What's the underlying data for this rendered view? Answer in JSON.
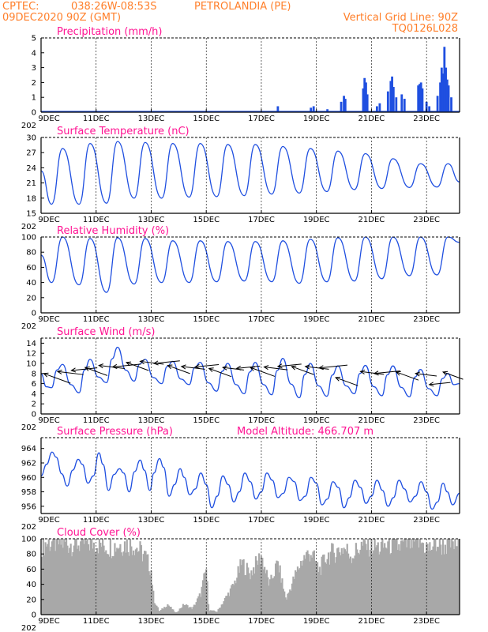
{
  "header": {
    "source": "CPTEC:",
    "coords": "038:26W-08:53S",
    "location": "PETROLANDIA (PE)",
    "date": "09DEC2020 90Z (GMT)",
    "grid_line": "Vertical Grid Line: 90Z",
    "code": "TQ0126L028"
  },
  "colors": {
    "line": "#1f4fe0",
    "cloud": "#a8a8a8",
    "header": "#ff7f2a",
    "title": "#ff1493",
    "grid": "#000000"
  },
  "x_ticks": [
    "9DEC",
    "11DEC",
    "13DEC",
    "15DEC",
    "17DEC",
    "19DEC",
    "21DEC",
    "23DEC"
  ],
  "year_stub": "202",
  "chart_data": [
    {
      "id": "precip",
      "type": "bar",
      "title": "Precipitation (mm/h)",
      "yticks": [
        "0",
        "1",
        "2",
        "3",
        "4",
        "5"
      ],
      "ylim": [
        0,
        5
      ],
      "x_days": [
        9,
        24.2
      ],
      "bars": [
        [
          17.6,
          0.4
        ],
        [
          18.8,
          0.3
        ],
        [
          18.9,
          0.4
        ],
        [
          19.4,
          0.2
        ],
        [
          19.9,
          0.7
        ],
        [
          20.0,
          1.1
        ],
        [
          20.05,
          0.9
        ],
        [
          20.7,
          1.6
        ],
        [
          20.75,
          2.3
        ],
        [
          20.8,
          2.0
        ],
        [
          20.85,
          1.2
        ],
        [
          21.2,
          0.4
        ],
        [
          21.3,
          0.6
        ],
        [
          21.6,
          1.4
        ],
        [
          21.7,
          2.1
        ],
        [
          21.75,
          2.4
        ],
        [
          21.8,
          1.7
        ],
        [
          21.9,
          1.0
        ],
        [
          22.1,
          1.2
        ],
        [
          22.2,
          0.9
        ],
        [
          22.7,
          1.8
        ],
        [
          22.75,
          1.9
        ],
        [
          22.8,
          2.0
        ],
        [
          22.85,
          1.6
        ],
        [
          23.0,
          0.7
        ],
        [
          23.1,
          0.4
        ],
        [
          23.4,
          1.1
        ],
        [
          23.5,
          2.0
        ],
        [
          23.55,
          3.0
        ],
        [
          23.6,
          2.6
        ],
        [
          23.65,
          4.4
        ],
        [
          23.7,
          3.0
        ],
        [
          23.75,
          2.2
        ],
        [
          23.8,
          1.8
        ],
        [
          23.9,
          1.0
        ]
      ]
    },
    {
      "id": "temp",
      "type": "line",
      "title": "Surface Temperature (nC)",
      "yticks": [
        "15",
        "18",
        "21",
        "24",
        "27",
        "30"
      ],
      "ylim": [
        15,
        30
      ],
      "min": [
        16.8,
        16.8,
        17.0,
        18.0,
        18.0,
        18.2,
        18.3,
        18.5,
        18.8,
        19.0,
        19.3,
        19.7,
        19.9,
        20.1,
        20.2
      ],
      "max": [
        27.8,
        28.8,
        29.2,
        29.0,
        28.8,
        28.8,
        28.6,
        28.6,
        28.2,
        27.8,
        27.3,
        26.8,
        25.8,
        24.8,
        24.8
      ],
      "end": 21.2
    },
    {
      "id": "rh",
      "type": "line",
      "title": "Relative Humidity (%)",
      "yticks": [
        "0",
        "20",
        "40",
        "60",
        "80",
        "100"
      ],
      "ylim": [
        0,
        100
      ],
      "min": [
        40,
        37,
        27,
        38,
        40,
        40,
        41,
        42,
        41,
        39,
        41,
        42,
        45,
        49,
        50
      ],
      "max": [
        100,
        98,
        99,
        98,
        95,
        95,
        94,
        94,
        95,
        97,
        99,
        100,
        100,
        100,
        100
      ],
      "end": 93
    },
    {
      "id": "wind",
      "type": "line",
      "title": "Surface Wind (m/s)",
      "yticks": [
        "0",
        "2",
        "4",
        "6",
        "8",
        "10",
        "12",
        "14"
      ],
      "ylim": [
        0,
        15
      ],
      "min": [
        5.2,
        4.2,
        6.2,
        6.5,
        6.0,
        5.8,
        4.5,
        4.0,
        3.8,
        3.2,
        3.5,
        4.0,
        3.6,
        3.4,
        3.6
      ],
      "max": [
        9.8,
        10.8,
        13.2,
        10.8,
        10.4,
        10.2,
        10.0,
        10.2,
        11.0,
        10.0,
        9.5,
        9.6,
        9.5,
        8.8,
        8.0
      ],
      "end": 6.0,
      "arrows": [
        [
          9.1,
          8.0,
          1.2
        ],
        [
          9.6,
          8.4,
          1.1
        ],
        [
          10.1,
          8.6,
          1.1
        ],
        [
          10.6,
          9.2,
          1.0
        ],
        [
          11.1,
          9.6,
          1.1
        ],
        [
          11.6,
          9.3,
          1.2
        ],
        [
          12.1,
          10.2,
          1.0
        ],
        [
          12.6,
          10.4,
          1.0
        ],
        [
          13.1,
          10.0,
          1.1
        ],
        [
          13.6,
          9.6,
          1.0
        ],
        [
          14.1,
          9.4,
          1.0
        ],
        [
          14.6,
          9.3,
          1.0
        ],
        [
          15.1,
          9.0,
          1.0
        ],
        [
          15.6,
          9.2,
          0.9
        ],
        [
          16.1,
          9.0,
          1.0
        ],
        [
          16.6,
          9.2,
          1.1
        ],
        [
          17.1,
          9.3,
          1.0
        ],
        [
          17.6,
          9.4,
          1.0
        ],
        [
          18.1,
          9.4,
          1.0
        ],
        [
          18.6,
          9.4,
          1.0
        ],
        [
          19.1,
          9.1,
          1.2
        ],
        [
          19.7,
          7.2,
          1.0
        ],
        [
          20.6,
          8.4,
          1.0
        ],
        [
          21.1,
          8.0,
          1.1
        ],
        [
          21.9,
          8.3,
          1.0
        ],
        [
          22.6,
          8.0,
          0.9
        ],
        [
          23.1,
          5.8,
          0.9
        ],
        [
          23.6,
          8.3,
          0.9
        ]
      ]
    },
    {
      "id": "pres",
      "type": "line",
      "title": "Surface Pressure (hPa)",
      "annotation": "Model Altitude: 466.707 m",
      "yticks": [
        "956",
        "958",
        "960",
        "962",
        "964"
      ],
      "ylim": [
        955,
        965.5
      ],
      "series": [
        [
          9.0,
          960.2
        ],
        [
          9.2,
          961.8
        ],
        [
          9.4,
          963.5
        ],
        [
          9.55,
          962.8
        ],
        [
          9.75,
          960.5
        ],
        [
          9.95,
          958.8
        ],
        [
          10.15,
          961.0
        ],
        [
          10.35,
          962.5
        ],
        [
          10.5,
          961.8
        ],
        [
          10.7,
          959.2
        ],
        [
          10.9,
          960.2
        ],
        [
          11.1,
          963.4
        ],
        [
          11.25,
          961.8
        ],
        [
          11.45,
          958.2
        ],
        [
          11.65,
          960.4
        ],
        [
          11.85,
          961.2
        ],
        [
          12.0,
          960.6
        ],
        [
          12.2,
          958.0
        ],
        [
          12.4,
          960.8
        ],
        [
          12.6,
          962.4
        ],
        [
          12.75,
          961.0
        ],
        [
          12.95,
          958.2
        ],
        [
          13.1,
          960.6
        ],
        [
          13.3,
          962.6
        ],
        [
          13.45,
          961.4
        ],
        [
          13.65,
          957.4
        ],
        [
          13.85,
          959.0
        ],
        [
          14.05,
          961.2
        ],
        [
          14.2,
          960.0
        ],
        [
          14.4,
          957.6
        ],
        [
          14.6,
          958.4
        ],
        [
          14.8,
          960.6
        ],
        [
          15.0,
          959.0
        ],
        [
          15.2,
          955.8
        ],
        [
          15.4,
          957.4
        ],
        [
          15.6,
          960.2
        ],
        [
          15.8,
          959.0
        ],
        [
          16.0,
          956.6
        ],
        [
          16.2,
          958.0
        ],
        [
          16.4,
          960.6
        ],
        [
          16.6,
          959.4
        ],
        [
          16.8,
          957.0
        ],
        [
          17.0,
          958.0
        ],
        [
          17.2,
          960.6
        ],
        [
          17.4,
          959.6
        ],
        [
          17.6,
          957.2
        ],
        [
          17.8,
          957.8
        ],
        [
          18.0,
          960.0
        ],
        [
          18.2,
          959.4
        ],
        [
          18.4,
          956.8
        ],
        [
          18.6,
          957.4
        ],
        [
          18.8,
          960.0
        ],
        [
          19.0,
          959.2
        ],
        [
          19.2,
          956.2
        ],
        [
          19.4,
          957.0
        ],
        [
          19.6,
          959.4
        ],
        [
          19.8,
          958.6
        ],
        [
          20.0,
          955.8
        ],
        [
          20.2,
          957.2
        ],
        [
          20.4,
          959.6
        ],
        [
          20.6,
          958.6
        ],
        [
          20.8,
          956.4
        ],
        [
          21.0,
          957.4
        ],
        [
          21.2,
          959.6
        ],
        [
          21.4,
          958.2
        ],
        [
          21.6,
          956.0
        ],
        [
          21.8,
          957.2
        ],
        [
          22.0,
          959.6
        ],
        [
          22.2,
          958.4
        ],
        [
          22.4,
          956.6
        ],
        [
          22.6,
          957.4
        ],
        [
          22.8,
          959.4
        ],
        [
          23.0,
          958.0
        ],
        [
          23.2,
          955.6
        ],
        [
          23.4,
          956.6
        ],
        [
          23.6,
          959.2
        ],
        [
          23.75,
          958.0
        ],
        [
          23.95,
          956.2
        ],
        [
          24.2,
          957.8
        ]
      ]
    },
    {
      "id": "cloud",
      "type": "bar",
      "title": "Cloud Cover (%)",
      "yticks": [
        "0",
        "20",
        "40",
        "60",
        "80",
        "100"
      ],
      "ylim": [
        0,
        100
      ],
      "profile": [
        [
          9.1,
          95
        ],
        [
          9.3,
          98
        ],
        [
          10.0,
          96
        ],
        [
          11.0,
          97
        ],
        [
          11.5,
          92
        ],
        [
          12.0,
          96
        ],
        [
          12.4,
          94
        ],
        [
          12.8,
          78
        ],
        [
          13.0,
          60
        ],
        [
          13.1,
          20
        ],
        [
          13.3,
          4
        ],
        [
          13.6,
          14
        ],
        [
          13.9,
          2
        ],
        [
          14.2,
          14
        ],
        [
          14.5,
          8
        ],
        [
          14.8,
          28
        ],
        [
          15.0,
          62
        ],
        [
          15.1,
          6
        ],
        [
          15.4,
          4
        ],
        [
          15.7,
          22
        ],
        [
          16.0,
          40
        ],
        [
          16.3,
          70
        ],
        [
          16.6,
          55
        ],
        [
          17.0,
          80
        ],
        [
          17.3,
          40
        ],
        [
          17.6,
          70
        ],
        [
          17.9,
          20
        ],
        [
          18.2,
          50
        ],
        [
          18.5,
          75
        ],
        [
          18.8,
          85
        ],
        [
          19.1,
          60
        ],
        [
          19.4,
          80
        ],
        [
          19.7,
          85
        ],
        [
          20.0,
          90
        ],
        [
          20.3,
          80
        ],
        [
          20.6,
          92
        ],
        [
          21.0,
          95
        ],
        [
          21.3,
          90
        ],
        [
          21.7,
          96
        ],
        [
          22.0,
          92
        ],
        [
          22.4,
          96
        ],
        [
          22.8,
          98
        ],
        [
          23.1,
          88
        ],
        [
          23.3,
          97
        ],
        [
          23.6,
          94
        ],
        [
          24.2,
          96
        ]
      ]
    }
  ]
}
